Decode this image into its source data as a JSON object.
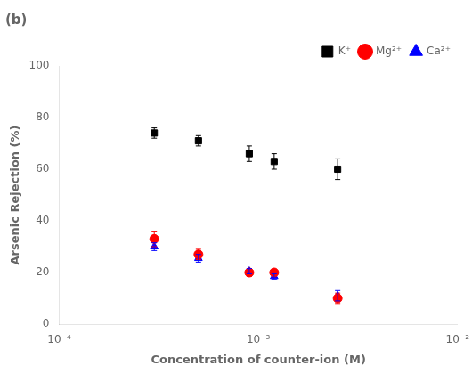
{
  "chart_data": {
    "type": "scatter",
    "title": "(b)",
    "xlabel": "Concentration of counter-ion (M)",
    "ylabel": "Arsenic Rejection (%)",
    "x": [
      0.0003,
      0.0005,
      0.0009,
      0.0012,
      0.0025
    ],
    "series": [
      {
        "name": "K⁺",
        "color": "#000000",
        "marker": "square",
        "values": [
          74,
          71,
          66,
          63,
          60
        ],
        "yerr": [
          2,
          2,
          3,
          3,
          4
        ]
      },
      {
        "name": "Mg²⁺",
        "color": "#ff0000",
        "marker": "circle",
        "values": [
          33,
          27,
          20,
          20,
          10
        ],
        "yerr": [
          3,
          2,
          1.5,
          1,
          2
        ]
      },
      {
        "name": "Ca²⁺",
        "color": "#0000ff",
        "marker": "triangle",
        "values": [
          30,
          25.5,
          20.5,
          18.5,
          11
        ],
        "yerr": [
          1.5,
          1.5,
          1,
          1,
          2
        ]
      }
    ],
    "log": "x",
    "xlim": [
      0.0001,
      0.01
    ],
    "xticks": [
      {
        "value": 0.0001,
        "label": "10⁻⁴"
      },
      {
        "value": 0.001,
        "label": "10⁻³"
      },
      {
        "value": 0.01,
        "label": "10⁻²"
      }
    ],
    "ylim": [
      0,
      100
    ],
    "yticks": [
      0,
      20,
      40,
      60,
      80,
      100
    ],
    "grid": false,
    "legend": "upper right"
  }
}
